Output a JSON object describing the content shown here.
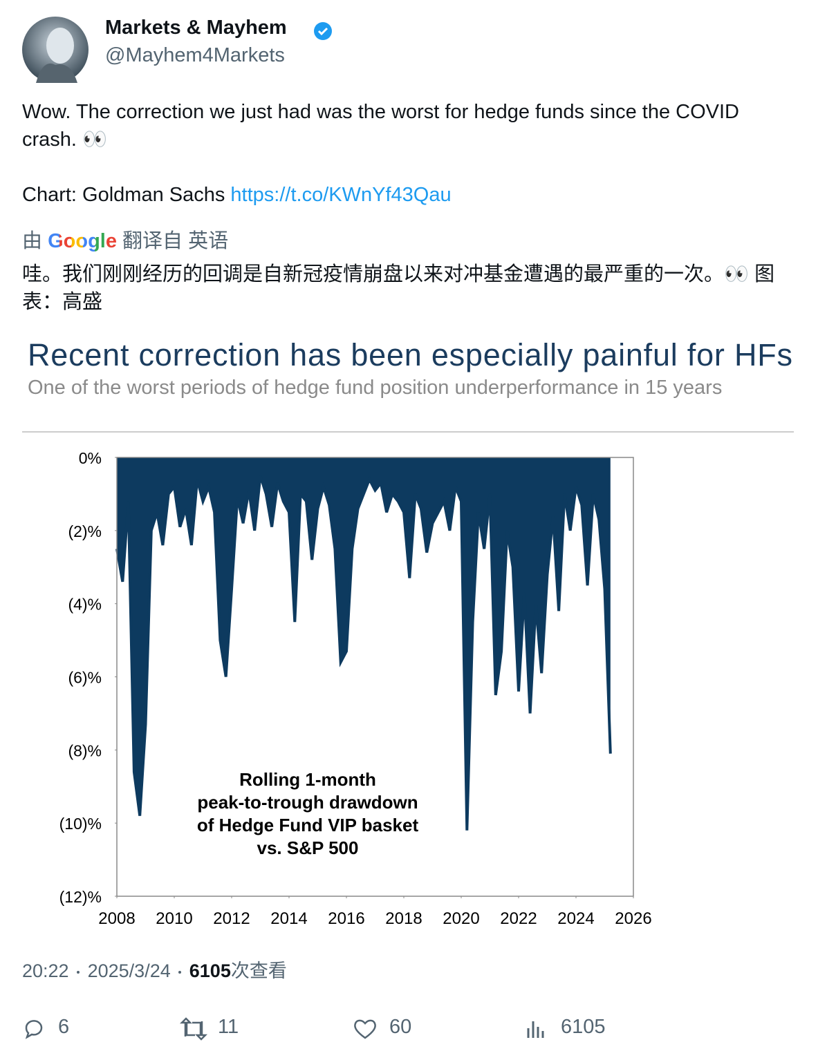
{
  "header": {
    "name": "Markets & Mayhem",
    "handle": "@Mayhem4Markets"
  },
  "tweet": {
    "text": "Wow. The correction we just had was the worst for hedge funds since the COVID crash. 👀",
    "source": "Chart: Goldman Sachs",
    "link": "https://t.co/KWnYf43Qau"
  },
  "translation": {
    "by": "由",
    "brand": "Google",
    "from": "翻译自 英语",
    "text": "哇。我们刚刚经历的回调是自新冠疫情崩盘以来对冲基金遭遇的最严重的一次。👀 图表：高盛"
  },
  "chart_data": {
    "type": "area",
    "title": "Recent correction has been especially painful for HFs",
    "subtitle": "One of the worst periods of hedge fund position underperformance in 15 years",
    "annotation": [
      "Rolling 1-month",
      "peak-to-trough drawdown",
      "of Hedge Fund VIP basket",
      "vs. S&P 500"
    ],
    "color": "#0d3a5f",
    "x": [
      2008,
      2008.2,
      2008.4,
      2008.6,
      2008.8,
      2009,
      2009.2,
      2009.4,
      2009.6,
      2009.8,
      2010,
      2010.2,
      2010.4,
      2010.6,
      2010.8,
      2011,
      2011.2,
      2011.4,
      2011.6,
      2011.8,
      2012,
      2012.2,
      2012.4,
      2012.6,
      2012.8,
      2013,
      2013.2,
      2013.4,
      2013.6,
      2013.8,
      2014,
      2014.2,
      2014.4,
      2014.6,
      2014.8,
      2015,
      2015.2,
      2015.4,
      2015.6,
      2015.8,
      2016,
      2016.2,
      2016.4,
      2016.6,
      2016.8,
      2017,
      2017.2,
      2017.4,
      2017.6,
      2017.8,
      2018,
      2018.2,
      2018.4,
      2018.6,
      2018.8,
      2019,
      2019.2,
      2019.4,
      2019.6,
      2019.8,
      2020,
      2020.2,
      2020.4,
      2020.6,
      2020.8,
      2021,
      2021.2,
      2021.4,
      2021.6,
      2021.8,
      2022,
      2022.2,
      2022.4,
      2022.6,
      2022.8,
      2023,
      2023.2,
      2023.4,
      2023.6,
      2023.8,
      2024,
      2024.2,
      2024.4,
      2024.6,
      2024.8,
      2025,
      2025.2
    ],
    "values": [
      -2.5,
      -3.4,
      -1.2,
      -8.6,
      -9.8,
      -7.3,
      -2.0,
      -1.5,
      -2.4,
      -1.0,
      -0.8,
      -1.9,
      -1.4,
      -2.4,
      -0.6,
      -1.2,
      -0.8,
      -1.5,
      -5.0,
      -6.0,
      -3.6,
      -1.1,
      -1.8,
      -0.9,
      -2.0,
      -0.5,
      -1.0,
      -1.9,
      -0.7,
      -1.2,
      -1.5,
      -4.5,
      -1.0,
      -1.2,
      -2.8,
      -1.4,
      -0.8,
      -1.3,
      -2.5,
      -5.6,
      -5.3,
      -2.5,
      -1.4,
      -1.0,
      -0.6,
      -0.9,
      -0.7,
      -1.5,
      -1.0,
      -1.2,
      -1.5,
      -3.3,
      -1.0,
      -1.4,
      -2.6,
      -1.8,
      -1.5,
      -1.2,
      -2.0,
      -0.8,
      -1.2,
      -10.2,
      -4.5,
      -1.5,
      -2.5,
      -1.0,
      -6.5,
      -5.3,
      -2.0,
      -3.0,
      -6.4,
      -3.7,
      -7.0,
      -4.0,
      -5.9,
      -3.2,
      -1.6,
      -4.2,
      -1.0,
      -2.0,
      -0.8,
      -1.3,
      -3.5,
      -1.0,
      -1.7,
      -3.6,
      -8.1
    ],
    "xlim": [
      2008,
      2026
    ],
    "xticks": [
      2008,
      2010,
      2012,
      2014,
      2016,
      2018,
      2020,
      2022,
      2024,
      2026
    ],
    "ylim": [
      -12,
      0
    ],
    "yticks": [
      {
        "value": 0,
        "label": "0%"
      },
      {
        "value": -2,
        "label": "(2)%"
      },
      {
        "value": -4,
        "label": "(4)%"
      },
      {
        "value": -6,
        "label": "(6)%"
      },
      {
        "value": -8,
        "label": "(8)%"
      },
      {
        "value": -10,
        "label": "(10)%"
      },
      {
        "value": -12,
        "label": "(12)%"
      }
    ]
  },
  "footer": {
    "time": "20:22",
    "date": "2025/3/24",
    "views": "6105",
    "views_suffix": "次查看"
  },
  "actions": {
    "replies": "6",
    "reposts": "11",
    "likes": "60",
    "views": "6105"
  }
}
